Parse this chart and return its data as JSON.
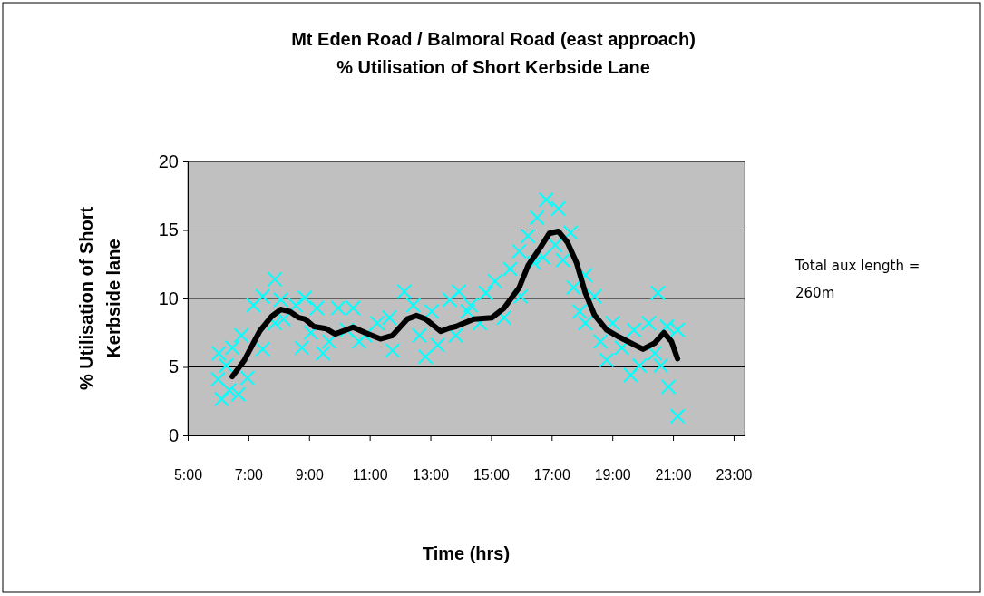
{
  "chart_data": {
    "type": "scatter",
    "title": "Mt Eden Road / Balmoral Road (east approach)",
    "subtitle": "% Utilisation of Short Kerbside Lane",
    "xlabel": "Time (hrs)",
    "ylabel": "% Utilisation of Short Kerbside lane",
    "annotations": [
      "Total aux length = 260m"
    ],
    "xlim": [
      5,
      23.36
    ],
    "xticks": [
      {
        "value": 5,
        "label": "5:00"
      },
      {
        "value": 7,
        "label": "7:00"
      },
      {
        "value": 9,
        "label": "9:00"
      },
      {
        "value": 11,
        "label": "11:00"
      },
      {
        "value": 13,
        "label": "13:00"
      },
      {
        "value": 15,
        "label": "15:00"
      },
      {
        "value": 17,
        "label": "17:00"
      },
      {
        "value": 19,
        "label": "19:00"
      },
      {
        "value": 21,
        "label": "21:00"
      },
      {
        "value": 23,
        "label": "23:00"
      }
    ],
    "ylim": [
      0,
      20
    ],
    "yticks": [
      0,
      5,
      10,
      15,
      20
    ],
    "grid": "y",
    "series": [
      {
        "color": "#00ffff",
        "marker": "cross",
        "x": [
          6.02,
          6.0,
          6.12,
          6.37,
          6.27,
          6.67,
          6.47,
          6.97,
          6.77,
          7.47,
          7.17,
          7.47,
          7.87,
          7.87,
          8.07,
          8.16,
          8.56,
          8.86,
          8.76,
          9.06,
          9.26,
          9.46,
          9.66,
          9.96,
          10.25,
          10.45,
          10.65,
          10.85,
          11.25,
          11.65,
          11.75,
          12.14,
          12.44,
          12.64,
          12.84,
          13.04,
          13.24,
          13.64,
          13.94,
          13.84,
          14.33,
          14.23,
          14.63,
          14.83,
          15.13,
          15.43,
          15.63,
          15.93,
          15.98,
          16.22,
          16.42,
          16.52,
          16.82,
          16.72,
          17.12,
          17.22,
          17.37,
          17.62,
          17.72,
          17.92,
          18.11,
          18.11,
          18.41,
          18.61,
          18.81,
          19.01,
          19.31,
          19.61,
          19.71,
          19.9,
          20.2,
          20.4,
          20.5,
          20.6,
          20.8,
          20.85,
          21.15,
          21.15
        ],
        "values": [
          6.0,
          4.1,
          2.65,
          3.3,
          5.1,
          3.0,
          6.4,
          4.2,
          7.3,
          6.3,
          9.5,
          10.15,
          11.4,
          8.2,
          9.9,
          8.5,
          9.5,
          10.05,
          6.4,
          7.5,
          9.3,
          6.0,
          6.85,
          9.3,
          7.7,
          9.3,
          6.85,
          7.3,
          8.2,
          8.6,
          6.2,
          10.5,
          9.5,
          7.3,
          5.75,
          9.05,
          6.6,
          9.9,
          10.5,
          7.3,
          9.5,
          9.05,
          8.2,
          10.4,
          11.25,
          8.6,
          12.15,
          13.45,
          10.15,
          14.55,
          12.6,
          15.9,
          17.2,
          13.0,
          13.9,
          16.55,
          12.8,
          14.8,
          10.8,
          9.05,
          11.7,
          8.2,
          10.15,
          6.85,
          5.5,
          8.2,
          6.4,
          4.4,
          7.7,
          5.1,
          8.2,
          6.0,
          10.4,
          5.1,
          7.95,
          3.55,
          7.7,
          1.4
        ]
      },
      {
        "type": "line",
        "color": "#000000",
        "marker": "none",
        "x": [
          6.47,
          6.87,
          7.37,
          7.77,
          8.07,
          8.36,
          8.66,
          8.86,
          9.16,
          9.56,
          9.86,
          10.45,
          10.85,
          11.35,
          11.75,
          12.24,
          12.54,
          12.84,
          13.34,
          13.64,
          13.84,
          14.43,
          15.03,
          15.43,
          15.93,
          16.22,
          16.62,
          16.92,
          17.22,
          17.52,
          17.82,
          18.11,
          18.41,
          18.81,
          19.21,
          19.61,
          20.01,
          20.4,
          20.7,
          20.95,
          21.15
        ],
        "values": [
          4.3,
          5.5,
          7.6,
          8.7,
          9.2,
          9.05,
          8.6,
          8.5,
          7.95,
          7.8,
          7.4,
          7.9,
          7.5,
          7.05,
          7.3,
          8.5,
          8.75,
          8.5,
          7.6,
          7.85,
          7.95,
          8.5,
          8.6,
          9.3,
          10.8,
          12.4,
          13.7,
          14.75,
          14.9,
          14.1,
          12.6,
          10.4,
          8.8,
          7.7,
          7.2,
          6.75,
          6.3,
          6.75,
          7.5,
          6.85,
          5.6
        ]
      }
    ]
  }
}
